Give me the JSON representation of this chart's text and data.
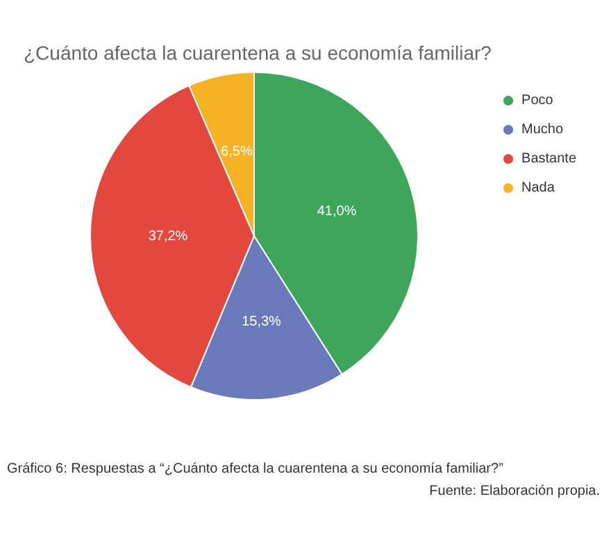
{
  "chart_data": {
    "type": "pie",
    "title": "¿Cuánto afecta la cuarentena a su economía familiar?",
    "categories": [
      "Poco",
      "Mucho",
      "Bastante",
      "Nada"
    ],
    "values": [
      41.0,
      15.3,
      37.2,
      6.5
    ],
    "colors": [
      "#3da65a",
      "#6a79b9",
      "#e2483e",
      "#f5b225"
    ],
    "value_labels": [
      "41,0%",
      "15,3%",
      "37,2%",
      "6,5%"
    ],
    "legend": "top right",
    "annotations": [
      "Gráfico 6: Respuestas a “¿Cuánto afecta la cuarentena a su economía familiar?”",
      "Fuente: Elaboración propia."
    ]
  }
}
